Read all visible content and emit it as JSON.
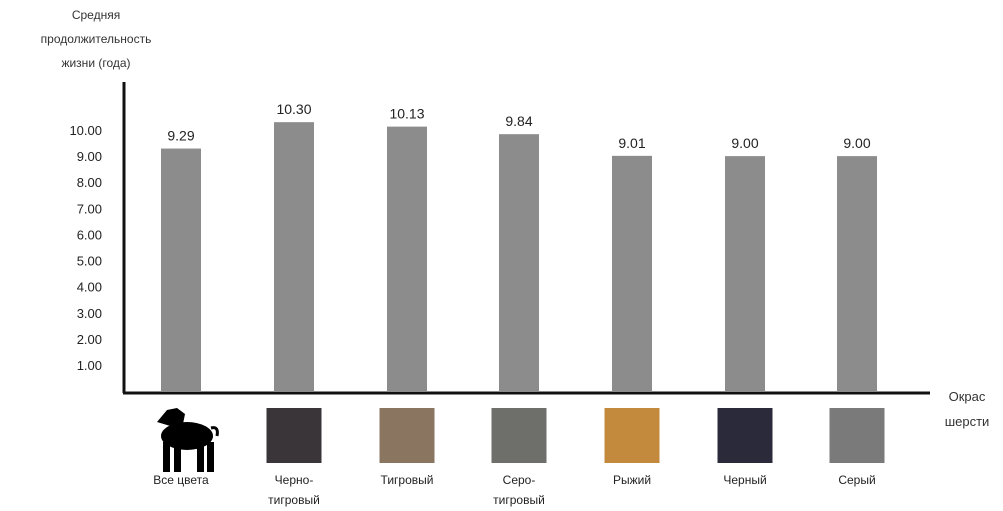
{
  "chart_data": {
    "type": "bar",
    "ylabel_lines": [
      "Средняя",
      "продолжительность",
      "жизни (года)"
    ],
    "xlabel_lines": [
      "Окрас",
      "шерсти"
    ],
    "y_ticks": [
      "1.00",
      "2.00",
      "3.00",
      "4.00",
      "5.00",
      "6.00",
      "7.00",
      "8.00",
      "9.00",
      "10.00"
    ],
    "ylim": [
      0,
      10.3
    ],
    "grid": false,
    "legend": false,
    "bar_color": "#8c8c8c",
    "categories": [
      {
        "label_lines": [
          "Все цвета"
        ],
        "swatch": "dog-silhouette-icon",
        "color": "#000000"
      },
      {
        "label_lines": [
          "Черно-",
          "тигровый"
        ],
        "swatch": "black-brindle-fur",
        "color": "#3a3538"
      },
      {
        "label_lines": [
          "Тигровый"
        ],
        "swatch": "brindle-fur",
        "color": "#8a7560"
      },
      {
        "label_lines": [
          "Серо-",
          "тигровый"
        ],
        "swatch": "grey-brindle-fur",
        "color": "#6e6e6b"
      },
      {
        "label_lines": [
          "Рыжий"
        ],
        "swatch": "red-fur",
        "color": "#c38a3d"
      },
      {
        "label_lines": [
          "Черный"
        ],
        "swatch": "black-fur",
        "color": "#2a2a3a"
      },
      {
        "label_lines": [
          "Серый"
        ],
        "swatch": "grey-fur",
        "color": "#7a7a7a"
      }
    ],
    "values": [
      9.29,
      10.3,
      10.13,
      9.84,
      9.01,
      9.0,
      9.0
    ],
    "value_labels": [
      "9.29",
      "10.30",
      "10.13",
      "9.84",
      "9.01",
      "9.00",
      "9.00"
    ]
  }
}
